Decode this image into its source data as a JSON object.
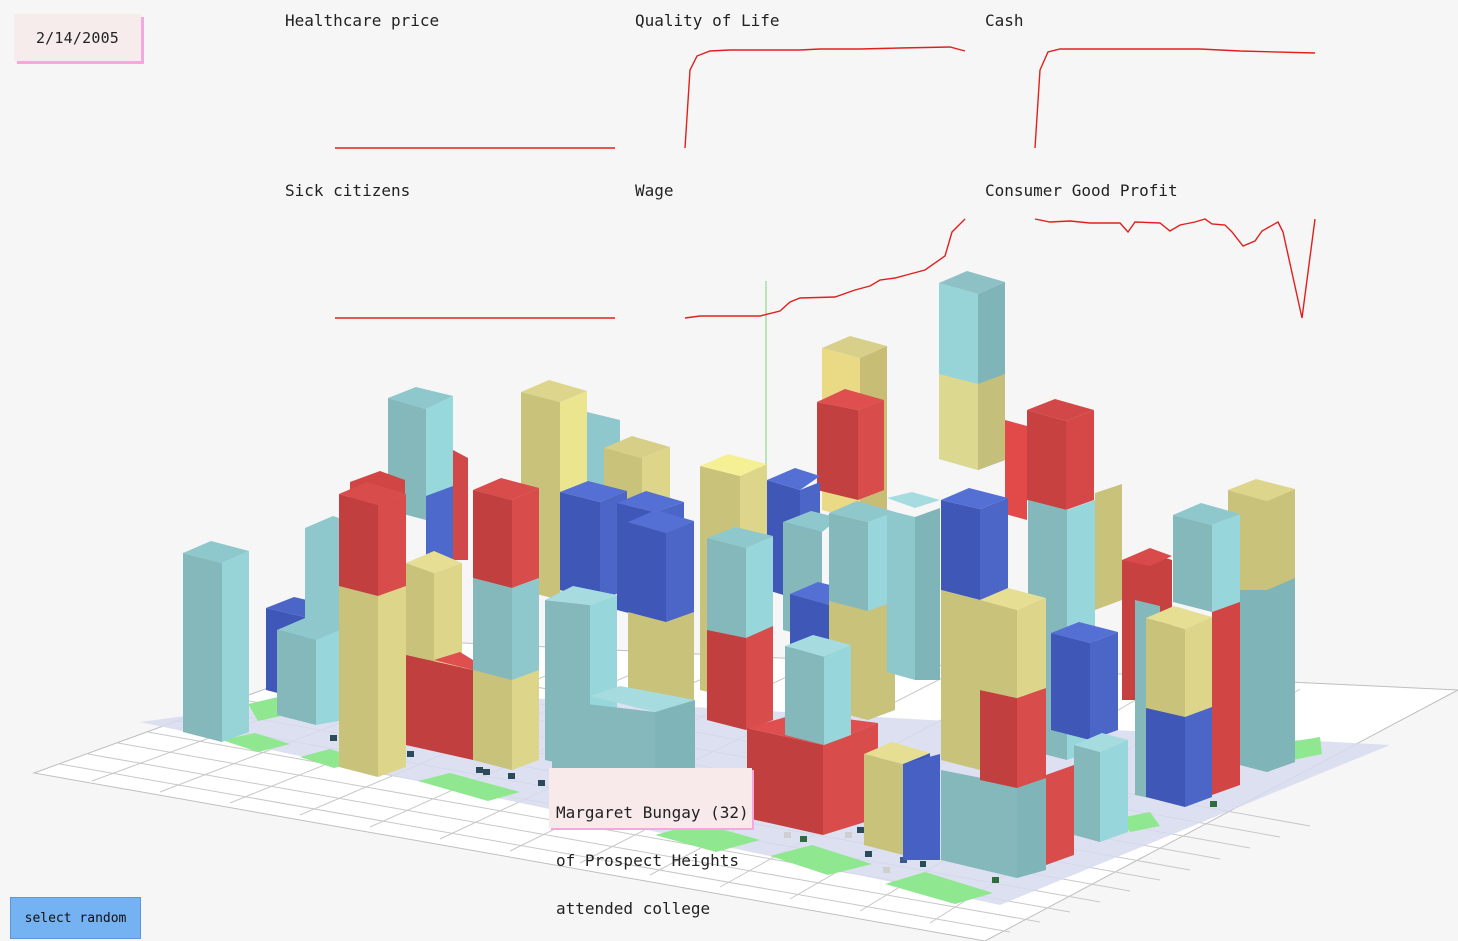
{
  "date": "2/14/2005",
  "charts": [
    {
      "title": "Healthcare price"
    },
    {
      "title": "Quality of Life"
    },
    {
      "title": "Cash"
    },
    {
      "title": "Sick citizens"
    },
    {
      "title": "Wage"
    },
    {
      "title": "Consumer Good Profit"
    }
  ],
  "tooltip": {
    "line1": "Margaret Bungay (32)",
    "line2": "of Prospect Heights",
    "line3": "attended college"
  },
  "select_button_label": "select random",
  "colors": {
    "spark_line": "#e0201c",
    "teal": "#86c4c8",
    "yellow": "#d9d48a",
    "red": "#d24545",
    "blue": "#4660c4",
    "park": "#8fe88f",
    "road": "#d4d8ec",
    "tooltip_bg": "#f8eaea",
    "accent_pink": "#f6a8de",
    "button": "#74b2f1"
  }
}
